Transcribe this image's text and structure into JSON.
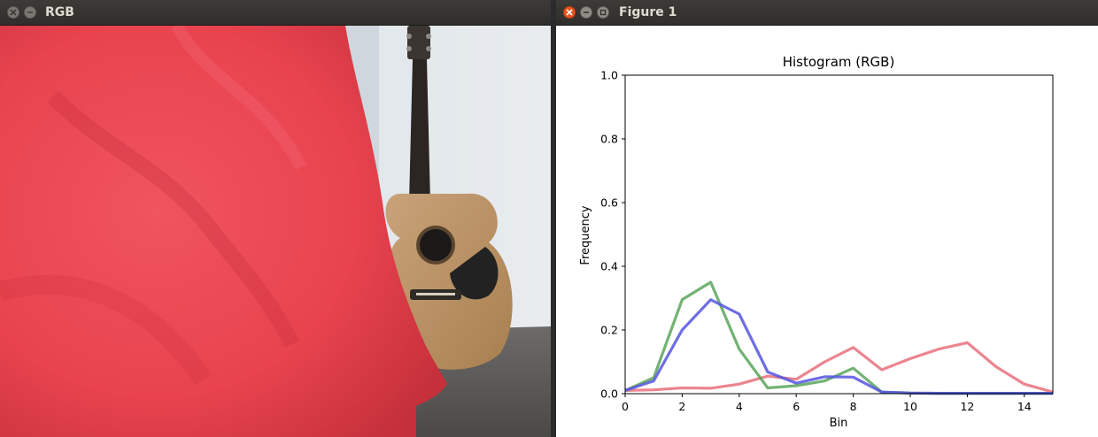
{
  "windows": {
    "left": {
      "title": "RGB"
    },
    "right": {
      "title": "Figure 1"
    }
  },
  "colors": {
    "titlebar": "#3c3b37",
    "close_active": "#e95420",
    "series_red": "#e8707c",
    "series_green": "#5aa55a",
    "series_blue": "#5555e0"
  },
  "icons": {
    "close": "close-icon",
    "minimize": "minimize-icon",
    "maximize": "maximize-icon"
  },
  "camera_feed": {
    "subjects": [
      "red-cloth",
      "acoustic-guitar"
    ]
  },
  "chart_data": {
    "type": "line",
    "title": "Histogram (RGB)",
    "xlabel": "Bin",
    "ylabel": "Frequency",
    "xlim": [
      0,
      15
    ],
    "ylim": [
      0,
      1.0
    ],
    "xticks": [
      0,
      2,
      4,
      6,
      8,
      10,
      12,
      14
    ],
    "yticks": [
      0.0,
      0.2,
      0.4,
      0.6,
      0.8,
      1.0
    ],
    "grid": false,
    "x": [
      0,
      1,
      2,
      3,
      4,
      5,
      6,
      7,
      8,
      9,
      10,
      11,
      12,
      13,
      14,
      15
    ],
    "series": [
      {
        "name": "red",
        "color": "#e8707c",
        "values": [
          0.01,
          0.012,
          0.018,
          0.017,
          0.03,
          0.055,
          0.045,
          0.1,
          0.145,
          0.075,
          0.11,
          0.14,
          0.16,
          0.085,
          0.03,
          0.005
        ]
      },
      {
        "name": "green",
        "color": "#5aa55a",
        "values": [
          0.01,
          0.05,
          0.295,
          0.35,
          0.14,
          0.018,
          0.025,
          0.04,
          0.08,
          0.005,
          0.002,
          0.001,
          0.001,
          0.001,
          0.001,
          0.001
        ]
      },
      {
        "name": "blue",
        "color": "#5555e0",
        "values": [
          0.01,
          0.04,
          0.2,
          0.295,
          0.25,
          0.068,
          0.033,
          0.053,
          0.052,
          0.005,
          0.002,
          0.001,
          0.001,
          0.001,
          0.001,
          0.001
        ]
      }
    ]
  }
}
